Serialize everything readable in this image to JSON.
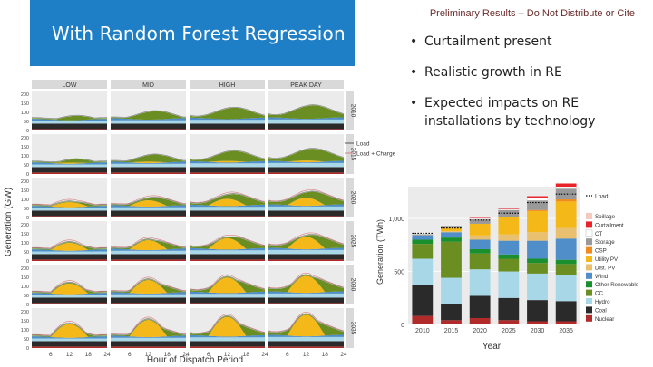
{
  "slide": {
    "title": "With Random Forest Regression",
    "notice": "Preliminary Results – Do Not Distribute or Cite",
    "bullets": [
      "Curtailment present",
      "Realistic growth in RE",
      "Expected impacts on RE installations by technology"
    ]
  },
  "facet_chart": {
    "ylabel": "Generation (GW)",
    "xlabel": "Hour of Dispatch Period",
    "columns": [
      "LOW",
      "MID",
      "HIGH",
      "PEAK DAY"
    ],
    "rows": [
      "2010",
      "2015",
      "2020",
      "2025",
      "2030",
      "2035"
    ],
    "yticks": [
      "0",
      "50",
      "100",
      "150",
      "200"
    ],
    "xticks": [
      "6",
      "12",
      "18",
      "24"
    ],
    "legend": [
      "Load",
      "Load + Charge"
    ]
  },
  "chart_data": {
    "type": "bar",
    "xlabel": "Year",
    "ylabel": "Generation (TWh)",
    "categories": [
      "2010",
      "2015",
      "2020",
      "2025",
      "2030",
      "2035"
    ],
    "yticks": [
      "0",
      "500",
      "1,000"
    ],
    "ylim": [
      0,
      1300
    ],
    "load_label": "Load",
    "load": [
      860,
      910,
      985,
      1050,
      1150,
      1230
    ],
    "series": [
      {
        "name": "Nuclear",
        "color": "#b22b2b",
        "values": [
          80,
          40,
          60,
          40,
          30,
          30
        ]
      },
      {
        "name": "Coal",
        "color": "#2a2a2a",
        "values": [
          290,
          150,
          210,
          210,
          200,
          190
        ]
      },
      {
        "name": "Hydro",
        "color": "#a8d8e8",
        "values": [
          250,
          250,
          250,
          250,
          250,
          250
        ]
      },
      {
        "name": "CC",
        "color": "#6b8e23",
        "values": [
          140,
          340,
          150,
          120,
          100,
          100
        ]
      },
      {
        "name": "Other Renewable",
        "color": "#1a8f2e",
        "values": [
          40,
          40,
          40,
          40,
          40,
          40
        ]
      },
      {
        "name": "Wind",
        "color": "#4f8ec8",
        "values": [
          40,
          50,
          90,
          130,
          170,
          200
        ]
      },
      {
        "name": "Dist. PV",
        "color": "#e8c070",
        "values": [
          0,
          10,
          40,
          60,
          80,
          100
        ]
      },
      {
        "name": "Utility PV",
        "color": "#f5b819",
        "values": [
          0,
          30,
          110,
          160,
          200,
          250
        ]
      },
      {
        "name": "CSP",
        "color": "#f08a1c",
        "values": [
          0,
          0,
          0,
          0,
          10,
          20
        ]
      },
      {
        "name": "Storage",
        "color": "#999999",
        "values": [
          10,
          20,
          40,
          70,
          90,
          100
        ]
      },
      {
        "name": "CT",
        "color": "#ffffff",
        "values": [
          0,
          0,
          10,
          10,
          20,
          20
        ]
      },
      {
        "name": "Curtailment",
        "color": "#e8232a",
        "values": [
          0,
          0,
          5,
          10,
          20,
          30
        ]
      },
      {
        "name": "Spillage",
        "color": "#f7c8c0",
        "values": [
          0,
          0,
          0,
          0,
          0,
          0
        ]
      }
    ]
  }
}
